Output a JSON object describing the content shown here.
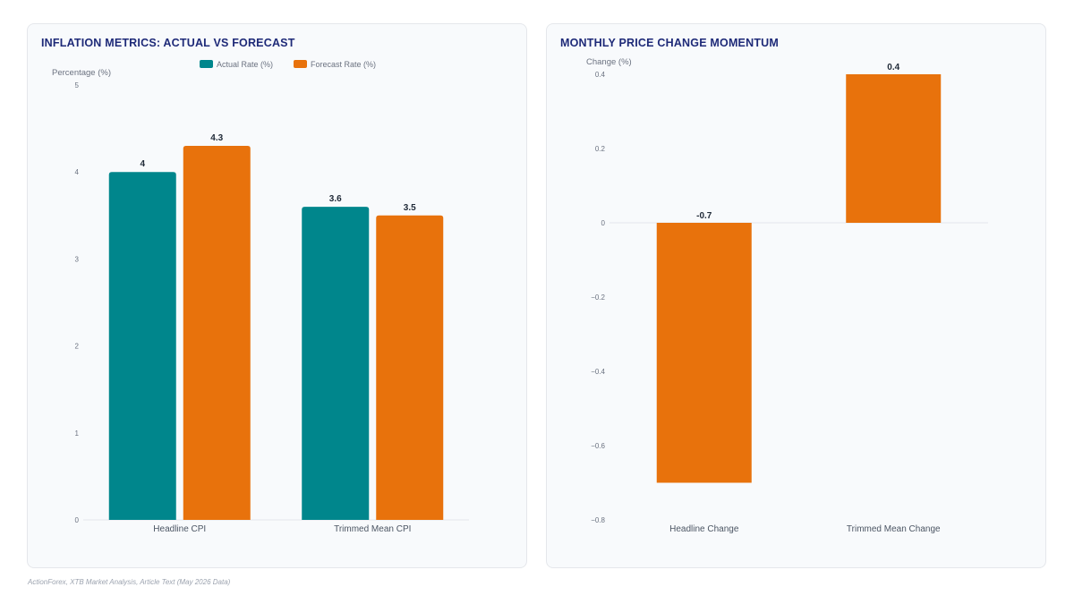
{
  "colors": {
    "actual": "#00868c",
    "forecast": "#e8720c",
    "title": "#1e2a78",
    "tick": "#6b7280",
    "value": "#1f2937"
  },
  "footer": "ActionForex, XTB Market Analysis, Article Text (May 2026 Data)",
  "chart_data": [
    {
      "type": "bar",
      "title": "INFLATION METRICS: ACTUAL VS FORECAST",
      "ylabel": "Percentage (%)",
      "xlabel": "",
      "categories": [
        "Headline CPI",
        "Trimmed Mean CPI"
      ],
      "series": [
        {
          "name": "Actual Rate (%)",
          "values": [
            4,
            3.6
          ],
          "color": "#00868c"
        },
        {
          "name": "Forecast Rate (%)",
          "values": [
            4.3,
            3.5
          ],
          "color": "#e8720c"
        }
      ],
      "ylim": [
        0,
        5
      ],
      "yticks": [
        "0",
        "1",
        "2",
        "3",
        "4",
        "5"
      ],
      "value_labels": [
        [
          "4",
          "3.6"
        ],
        [
          "4.3",
          "3.5"
        ]
      ],
      "legend": "top-center",
      "grid": false
    },
    {
      "type": "bar",
      "title": "MONTHLY PRICE CHANGE MOMENTUM",
      "ylabel": "Change (%)",
      "xlabel": "",
      "categories": [
        "Headline Change",
        "Trimmed Mean Change"
      ],
      "series": [
        {
          "values": [
            -0.7,
            0.4
          ],
          "color": "#e8720c"
        }
      ],
      "ylim": [
        -0.8,
        0.4
      ],
      "yticks": [
        "−0.8",
        "−0.6",
        "−0.4",
        "−0.2",
        "0",
        "0.2",
        "0.4"
      ],
      "value_labels": [
        [
          "-0.7",
          "0.4"
        ]
      ],
      "legend": "none",
      "grid": false
    }
  ]
}
